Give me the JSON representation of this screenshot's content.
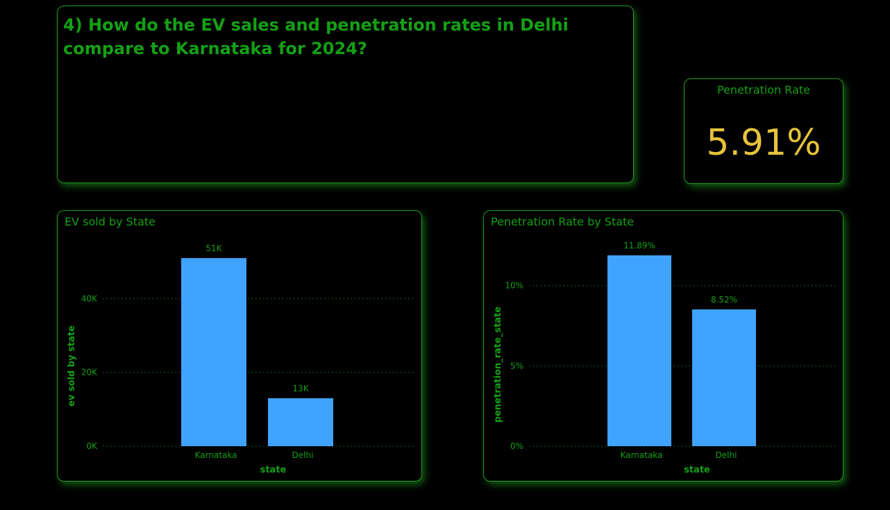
{
  "question": {
    "text": "4) How do the EV sales and penetration rates in Delhi compare to Karnataka for 2024?"
  },
  "kpi": {
    "title": "Penetration Rate",
    "value": "5.91%"
  },
  "colors": {
    "background": "#000000",
    "accent": "#14a014",
    "bar": "#3fa3ff",
    "kpi_value": "#e6c33c"
  },
  "chart_data": [
    {
      "type": "bar",
      "title": "EV sold by State",
      "xlabel": "state",
      "ylabel": "ev sold by state",
      "categories": [
        "Karnataka",
        "Delhi"
      ],
      "values": [
        51000,
        13000
      ],
      "data_labels": [
        "51K",
        "13K"
      ],
      "yticks": [
        0,
        20000,
        40000
      ],
      "ytick_labels": [
        "0K",
        "20K",
        "40K"
      ],
      "ylim": [
        0,
        51000
      ],
      "grid": true,
      "legend": "none"
    },
    {
      "type": "bar",
      "title": "Penetration Rate by State",
      "xlabel": "state",
      "ylabel": "penetration_rate_state",
      "categories": [
        "Karnataka",
        "Delhi"
      ],
      "values": [
        11.89,
        8.52
      ],
      "data_labels": [
        "11.89%",
        "8.52%"
      ],
      "yticks": [
        0,
        5,
        10
      ],
      "ytick_labels": [
        "0%",
        "5%",
        "10%"
      ],
      "ylim": [
        0,
        11.89
      ],
      "grid": true,
      "legend": "none"
    }
  ]
}
